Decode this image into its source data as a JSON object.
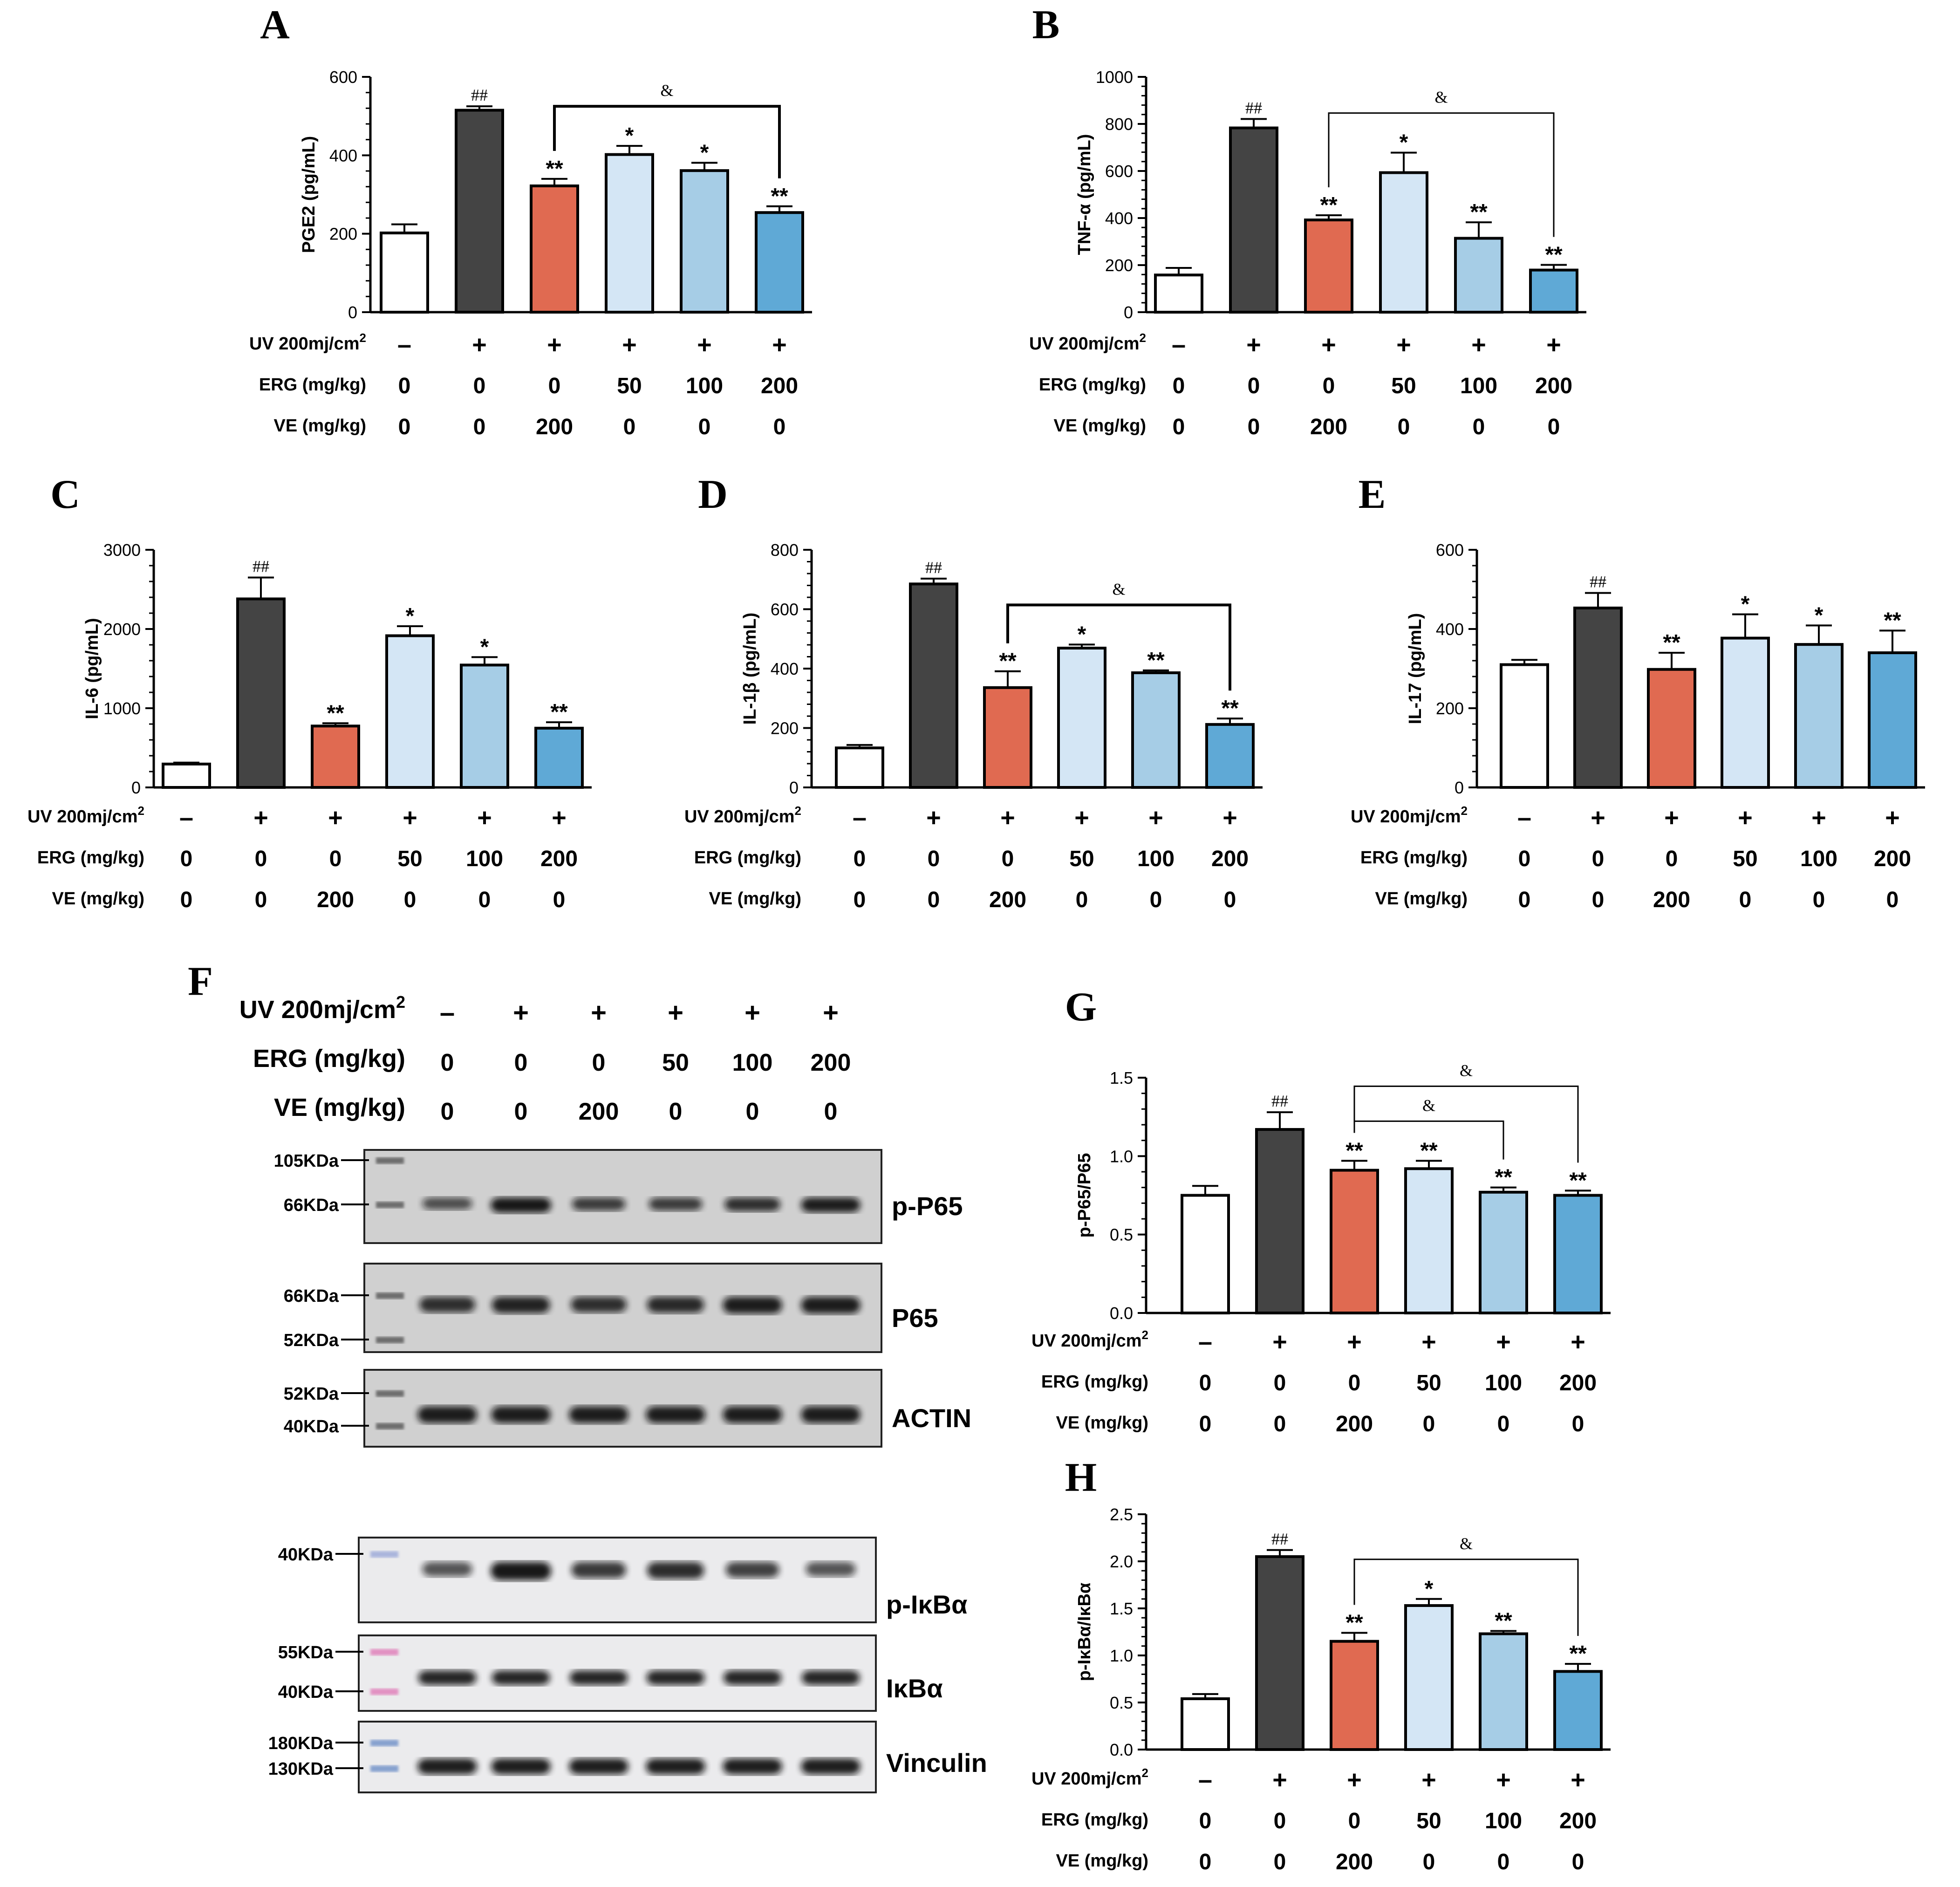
{
  "colors": {
    "control": "#ffffff",
    "model": "#444444",
    "ve": "#e06a51",
    "erg50": "#d4e6f5",
    "erg100": "#a6cde6",
    "erg200": "#5fa9d6",
    "axis": "#000000"
  },
  "row_labels": {
    "uv": "UV 200mj/cm",
    "uv_sup": "2",
    "erg": "ERG (mg/kg)",
    "ve": "VE (mg/kg)"
  },
  "groups": {
    "uv": [
      "–",
      "+",
      "+",
      "+",
      "+",
      "+"
    ],
    "erg": [
      "0",
      "0",
      "0",
      "50",
      "100",
      "200"
    ],
    "ve": [
      "0",
      "0",
      "200",
      "0",
      "0",
      "0"
    ]
  },
  "chart_data": [
    {
      "panel": "A",
      "type": "bar",
      "ylabel": "PGE2 (pg/mL)",
      "ylim": [
        0,
        600
      ],
      "yticks": [
        "0",
        "200",
        "400",
        "600"
      ],
      "values": [
        202,
        515,
        322,
        402,
        361,
        254
      ],
      "errors": [
        22,
        10,
        18,
        22,
        20,
        16
      ],
      "marks": [
        "",
        "##",
        "**",
        "*",
        "*",
        "**"
      ],
      "brackets": [
        {
          "from": 2,
          "to": 5,
          "label": "&"
        }
      ]
    },
    {
      "panel": "B",
      "type": "bar",
      "ylabel": "TNF-α (pg/mL)",
      "ylim": [
        0,
        1000
      ],
      "yticks": [
        "0",
        "200",
        "400",
        "600",
        "800",
        "1000"
      ],
      "values": [
        158,
        783,
        392,
        593,
        314,
        179
      ],
      "errors": [
        30,
        38,
        20,
        85,
        68,
        22
      ],
      "marks": [
        "",
        "##",
        "**",
        "*",
        "**",
        "**"
      ],
      "brackets": [
        {
          "from": 2,
          "to": 5,
          "label": "&"
        }
      ]
    },
    {
      "panel": "C",
      "type": "bar",
      "ylabel": "IL-6 (pg/mL)",
      "ylim": [
        0,
        3000
      ],
      "yticks": [
        "0",
        "1000",
        "2000",
        "3000"
      ],
      "values": [
        295,
        2380,
        775,
        1915,
        1545,
        748
      ],
      "errors": [
        18,
        270,
        35,
        120,
        100,
        75
      ],
      "marks": [
        "",
        "##",
        "**",
        "*",
        "*",
        "**"
      ],
      "brackets": []
    },
    {
      "panel": "D",
      "type": "bar",
      "ylabel": "IL-1β (pg/mL)",
      "ylim": [
        0,
        800
      ],
      "yticks": [
        "0",
        "200",
        "400",
        "600",
        "800"
      ],
      "values": [
        133,
        685,
        336,
        469,
        386,
        212
      ],
      "errors": [
        10,
        18,
        55,
        12,
        8,
        20
      ],
      "marks": [
        "",
        "##",
        "**",
        "*",
        "**",
        "**"
      ],
      "brackets": [
        {
          "from": 2,
          "to": 5,
          "label": "&"
        }
      ]
    },
    {
      "panel": "E",
      "type": "bar",
      "ylabel": "IL-17 (pg/mL)",
      "ylim": [
        0,
        600
      ],
      "yticks": [
        "0",
        "200",
        "400",
        "600"
      ],
      "values": [
        310,
        453,
        298,
        377,
        361,
        340
      ],
      "errors": [
        12,
        38,
        42,
        60,
        48,
        56
      ],
      "marks": [
        "",
        "##",
        "**",
        "*",
        "*",
        "**"
      ],
      "brackets": []
    },
    {
      "panel": "G",
      "type": "bar",
      "ylabel": "p-P65/P65",
      "ylim": [
        0,
        1.5
      ],
      "yticks": [
        "0.0",
        "0.5",
        "1.0",
        "1.5"
      ],
      "values": [
        0.75,
        1.17,
        0.91,
        0.92,
        0.77,
        0.75
      ],
      "errors": [
        0.06,
        0.11,
        0.06,
        0.05,
        0.03,
        0.03
      ],
      "marks": [
        "",
        "##",
        "**",
        "**",
        "**",
        "**"
      ],
      "brackets": [
        {
          "from": 2,
          "to": 4,
          "label": "&"
        },
        {
          "from": 2,
          "to": 5,
          "label": "&"
        }
      ]
    },
    {
      "panel": "H",
      "type": "bar",
      "ylabel": "p-IκBα/IκBα",
      "ylim": [
        0,
        2.5
      ],
      "yticks": [
        "0.0",
        "0.5",
        "1.0",
        "1.5",
        "2.0",
        "2.5"
      ],
      "values": [
        0.54,
        2.05,
        1.15,
        1.53,
        1.23,
        0.83
      ],
      "errors": [
        0.05,
        0.07,
        0.09,
        0.07,
        0.03,
        0.08
      ],
      "marks": [
        "",
        "##",
        "**",
        "*",
        "**",
        "**"
      ],
      "brackets": [
        {
          "from": 2,
          "to": 5,
          "label": "&"
        }
      ]
    }
  ],
  "western_blot": {
    "panel": "F",
    "uv_label": "UV 200mj/cm",
    "uv_sup": "2",
    "erg_label": "ERG (mg/kg)",
    "ve_label": "VE (mg/kg)",
    "blots": [
      {
        "name": "p-P65",
        "markers": [
          "105KDa",
          "66KDa"
        ],
        "intensity": [
          0.55,
          1.0,
          0.7,
          0.7,
          0.8,
          0.95
        ]
      },
      {
        "name": "P65",
        "markers": [
          "66KDa",
          "52KDa"
        ],
        "intensity": [
          0.8,
          0.9,
          0.8,
          0.85,
          0.95,
          0.95
        ]
      },
      {
        "name": "ACTIN",
        "markers": [
          "52KDa",
          "40KDa"
        ],
        "intensity": [
          0.95,
          0.95,
          0.95,
          0.95,
          0.95,
          0.95
        ]
      },
      {
        "name": "p-IκBα",
        "markers": [
          "40KDa"
        ],
        "intensity": [
          0.55,
          1.0,
          0.75,
          0.85,
          0.7,
          0.55
        ]
      },
      {
        "name": "IκBα",
        "markers": [
          "55KDa",
          "40KDa"
        ],
        "intensity": [
          0.9,
          0.9,
          0.9,
          0.9,
          0.9,
          0.9
        ]
      },
      {
        "name": "Vinculin",
        "markers": [
          "180KDa",
          "130KDa"
        ],
        "intensity": [
          0.95,
          0.95,
          0.95,
          0.95,
          0.95,
          0.95
        ]
      }
    ]
  }
}
